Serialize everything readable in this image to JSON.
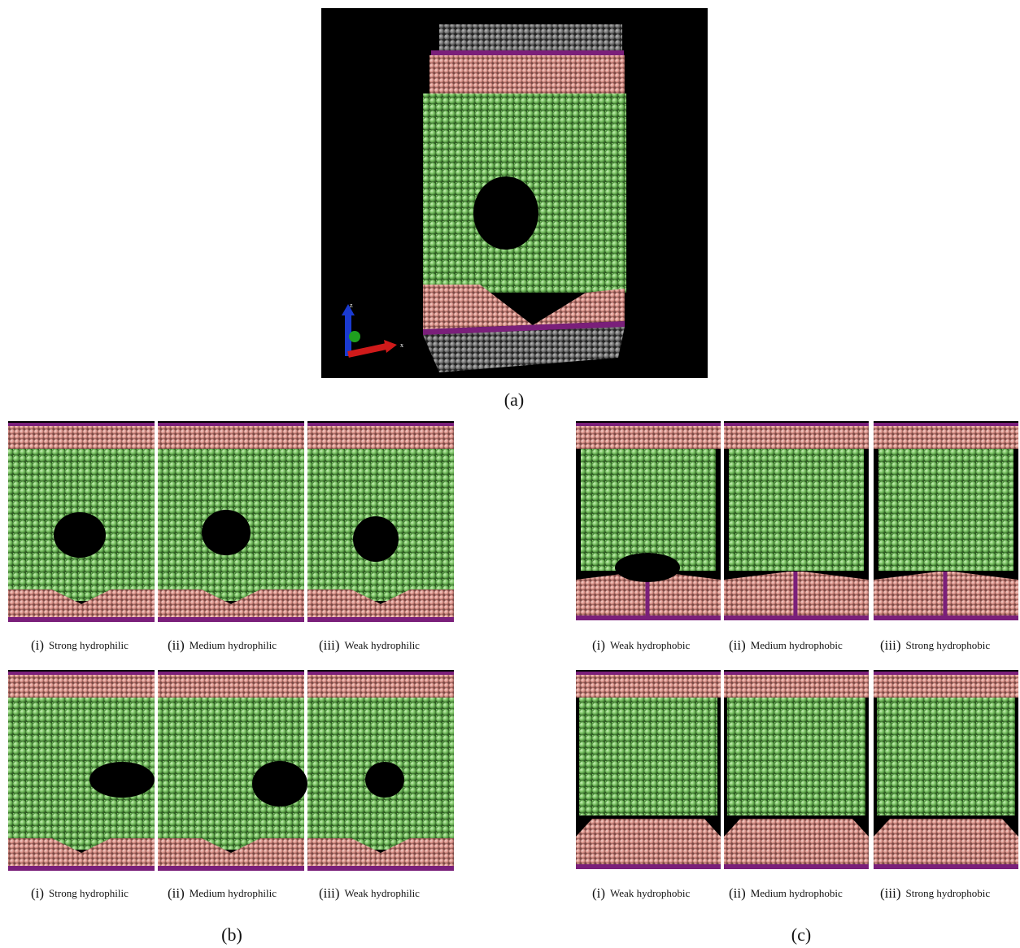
{
  "panel_a": {
    "label": "(a)",
    "axis_labels": [
      "z",
      "x"
    ]
  },
  "panel_b": {
    "label": "(b)",
    "rows": [
      {
        "captions": [
          {
            "numeral": "(i)",
            "text": "Strong hydrophilic"
          },
          {
            "numeral": "(ii)",
            "text": "Medium hydrophilic"
          },
          {
            "numeral": "(iii)",
            "text": "Weak hydrophilic"
          }
        ]
      },
      {
        "captions": [
          {
            "numeral": "(i)",
            "text": "Strong hydrophilic"
          },
          {
            "numeral": "(ii)",
            "text": "Medium hydrophilic"
          },
          {
            "numeral": "(iii)",
            "text": "Weak hydrophilic"
          }
        ]
      }
    ]
  },
  "panel_c": {
    "label": "(c)",
    "rows": [
      {
        "captions": [
          {
            "numeral": "(i)",
            "text": "Weak hydrophobic"
          },
          {
            "numeral": "(ii)",
            "text": "Medium hydrophobic"
          },
          {
            "numeral": "(iii)",
            "text": "Strong hydrophobic"
          }
        ]
      },
      {
        "captions": [
          {
            "numeral": "(i)",
            "text": "Weak hydrophobic"
          },
          {
            "numeral": "(ii)",
            "text": "Medium hydrophobic"
          },
          {
            "numeral": "(iii)",
            "text": "Strong hydrophobic"
          }
        ]
      }
    ]
  }
}
